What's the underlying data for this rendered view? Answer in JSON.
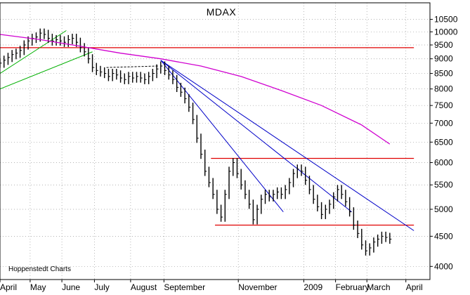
{
  "chart_data": {
    "type": "ohlc",
    "title": "MDAX",
    "credit": "Hoppenstedt Charts",
    "y_scale": "log",
    "ylim": [
      3800,
      11200
    ],
    "xlim": [
      0,
      100
    ],
    "y_ticks": [
      10500,
      10000,
      9500,
      9000,
      8500,
      8000,
      7500,
      7000,
      6500,
      6000,
      5500,
      5000,
      4500,
      4000
    ],
    "x_ticks": [
      {
        "label": "April",
        "x": 0
      },
      {
        "label": "May",
        "x": 7.5
      },
      {
        "label": "June",
        "x": 15.4
      },
      {
        "label": "July",
        "x": 23.5
      },
      {
        "label": "August",
        "x": 32.5
      },
      {
        "label": "September",
        "x": 40.8
      },
      {
        "label": "November",
        "x": 59.3
      },
      {
        "label": "2009",
        "x": 75.6
      },
      {
        "label": "February",
        "x": 83.5
      },
      {
        "label": "March",
        "x": 91.3
      },
      {
        "label": "April",
        "x": 101
      }
    ],
    "series": [
      {
        "type": "price",
        "color": "#000000",
        "points": [
          [
            0,
            8850
          ],
          [
            1,
            8950
          ],
          [
            2,
            9050
          ],
          [
            3,
            9150
          ],
          [
            4,
            9200
          ],
          [
            5,
            9300
          ],
          [
            6,
            9500
          ],
          [
            7,
            9650
          ],
          [
            8,
            9750
          ],
          [
            9,
            9800
          ],
          [
            10,
            9950
          ],
          [
            11,
            9900
          ],
          [
            12,
            9750
          ],
          [
            13,
            9650
          ],
          [
            14,
            9700
          ],
          [
            15,
            9650
          ],
          [
            16,
            9600
          ],
          [
            17,
            9700
          ],
          [
            18,
            9750
          ],
          [
            19,
            9600
          ],
          [
            20,
            9400
          ],
          [
            21,
            9250
          ],
          [
            22,
            9000
          ],
          [
            23,
            8700
          ],
          [
            24,
            8600
          ],
          [
            25,
            8550
          ],
          [
            26,
            8500
          ],
          [
            27,
            8400
          ],
          [
            28,
            8500
          ],
          [
            29,
            8450
          ],
          [
            30,
            8350
          ],
          [
            31,
            8300
          ],
          [
            32,
            8400
          ],
          [
            33,
            8350
          ],
          [
            34,
            8400
          ],
          [
            35,
            8350
          ],
          [
            36,
            8300
          ],
          [
            37,
            8400
          ],
          [
            38,
            8500
          ],
          [
            39,
            8650
          ],
          [
            40,
            8750
          ],
          [
            41,
            8600
          ],
          [
            42,
            8450
          ],
          [
            43,
            8300
          ],
          [
            44,
            8050
          ],
          [
            45,
            7900
          ],
          [
            46,
            7700
          ],
          [
            47,
            7450
          ],
          [
            48,
            7100
          ],
          [
            49,
            6600
          ],
          [
            50,
            6200
          ],
          [
            51,
            5800
          ],
          [
            52,
            5550
          ],
          [
            53,
            5300
          ],
          [
            54,
            5000
          ],
          [
            55,
            4850
          ],
          [
            56,
            5300
          ],
          [
            57,
            5800
          ],
          [
            58,
            6000
          ],
          [
            59,
            5750
          ],
          [
            60,
            5500
          ],
          [
            61,
            5300
          ],
          [
            62,
            5100
          ],
          [
            63,
            4800
          ],
          [
            64,
            5000
          ],
          [
            65,
            5200
          ],
          [
            66,
            5300
          ],
          [
            67,
            5250
          ],
          [
            68,
            5300
          ],
          [
            69,
            5350
          ],
          [
            70,
            5300
          ],
          [
            71,
            5400
          ],
          [
            72,
            5550
          ],
          [
            73,
            5750
          ],
          [
            74,
            5850
          ],
          [
            75,
            5800
          ],
          [
            76,
            5600
          ],
          [
            77,
            5400
          ],
          [
            78,
            5200
          ],
          [
            79,
            5050
          ],
          [
            80,
            4900
          ],
          [
            81,
            5000
          ],
          [
            82,
            5100
          ],
          [
            83,
            5250
          ],
          [
            84,
            5400
          ],
          [
            85,
            5300
          ],
          [
            86,
            5150
          ],
          [
            87,
            4950
          ],
          [
            88,
            4700
          ],
          [
            89,
            4550
          ],
          [
            90,
            4350
          ],
          [
            91,
            4250
          ],
          [
            92,
            4300
          ],
          [
            93,
            4400
          ],
          [
            94,
            4450
          ],
          [
            95,
            4500
          ],
          [
            96,
            4480
          ],
          [
            97,
            4450
          ]
        ]
      },
      {
        "type": "moving_average",
        "color": "#d000d0",
        "points": [
          [
            0,
            9900
          ],
          [
            10,
            9700
          ],
          [
            20,
            9450
          ],
          [
            30,
            9200
          ],
          [
            40,
            9000
          ],
          [
            50,
            8750
          ],
          [
            60,
            8400
          ],
          [
            70,
            7950
          ],
          [
            80,
            7500
          ],
          [
            90,
            6950
          ],
          [
            97,
            6450
          ]
        ]
      }
    ],
    "horizontal_lines": [
      {
        "y": 9400,
        "x": [
          0,
          103
        ],
        "color": "#e00000"
      },
      {
        "y": 6100,
        "x": [
          52.5,
          103
        ],
        "color": "#e00000"
      },
      {
        "y": 4700,
        "x": [
          53.5,
          103
        ],
        "color": "#e00000"
      }
    ],
    "trend_lines": [
      {
        "from": [
          40,
          8950
        ],
        "to": [
          70.5,
          4950
        ],
        "color": "#0000c8"
      },
      {
        "from": [
          40,
          8950
        ],
        "to": [
          103,
          4600
        ],
        "color": "#0000c8"
      },
      {
        "from": [
          40,
          8950
        ],
        "to": [
          87.5,
          4950
        ],
        "color": "#0000c8"
      },
      {
        "from": [
          0,
          8000
        ],
        "to": [
          23,
          9250
        ],
        "color": "#00b000"
      },
      {
        "from": [
          0,
          8500
        ],
        "to": [
          16.5,
          10050
        ],
        "color": "#00b000"
      },
      {
        "from": [
          26.5,
          8700
        ],
        "to": [
          39.5,
          8750
        ],
        "color": "#000000",
        "dashed": true
      }
    ]
  }
}
